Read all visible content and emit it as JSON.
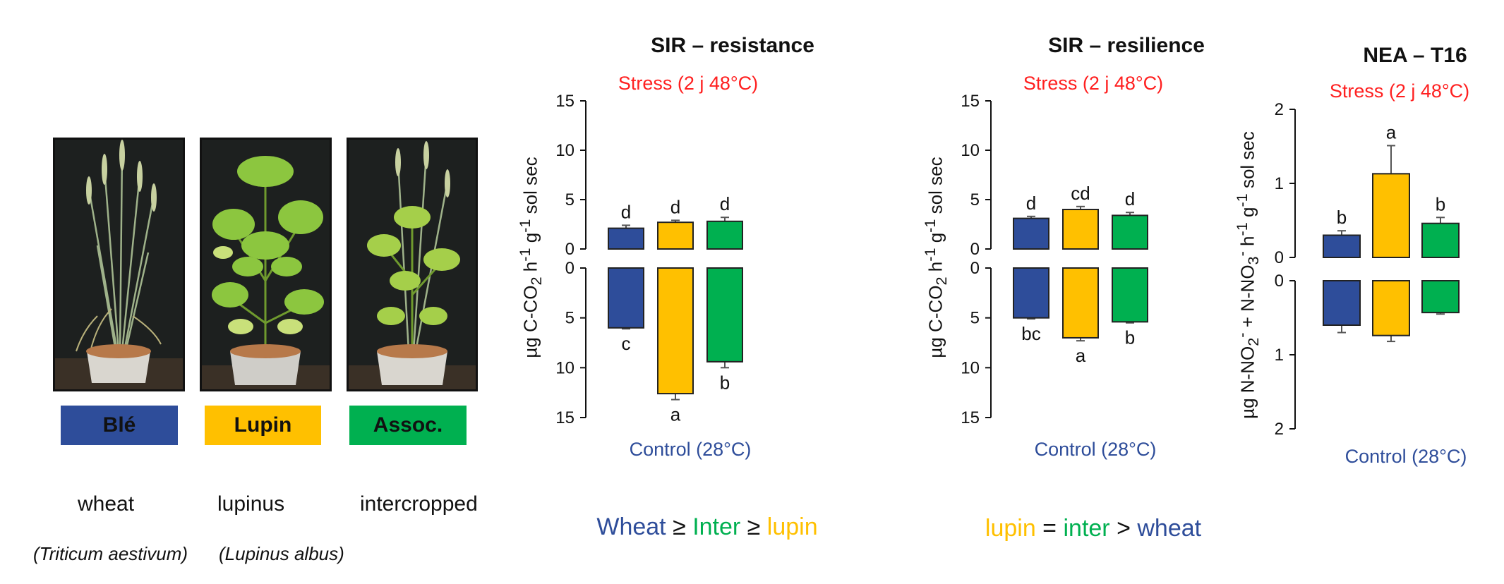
{
  "colors": {
    "wheat": "#2e4d9a",
    "lupin": "#ffc000",
    "inter": "#00b050",
    "stress": "#ff2020",
    "control": "#2e4d9a",
    "frame": "#111111"
  },
  "photos": [
    {
      "name": "photo-wheat",
      "tag": "wheat"
    },
    {
      "name": "photo-lupin",
      "tag": "lupin"
    },
    {
      "name": "photo-assoc",
      "tag": "inter"
    }
  ],
  "legend": {
    "wheat": "Blé",
    "lupin": "Lupin",
    "inter": "Assoc."
  },
  "captions": {
    "wheat": "wheat",
    "lupin": "lupinus",
    "inter": "intercropped"
  },
  "latin": {
    "wheat": "(Triticum aestivum)",
    "lupin": "(Lupinus albus)"
  },
  "panels": {
    "p1": {
      "title": "SIR – resistance",
      "stress": "Stress (2 j 48°C)",
      "control": "Control (28°C)"
    },
    "p2": {
      "title": "SIR – resilience",
      "stress": "Stress (2 j 48°C)",
      "control": "Control (28°C)"
    },
    "p3": {
      "title": "NEA – T16",
      "stress": "Stress (2 j 48°C)",
      "control": "Control (28°C)"
    }
  },
  "summary1": {
    "a": "Wheat",
    "op1": " ≥ ",
    "b": "Inter",
    "op2": " ≥ ",
    "c": "lupin"
  },
  "summary2": {
    "a": "lupin",
    "op1": " = ",
    "b": "inter",
    "op2": " > ",
    "c": "wheat"
  },
  "chart_data": [
    {
      "type": "bar",
      "title": "SIR – resistance",
      "ylabel": "µg C-CO2 h-1 g-1 sol sec",
      "categories": [
        "wheat",
        "lupin",
        "inter"
      ],
      "upper": {
        "label": "Stress (2 j 48°C)",
        "ylim": [
          0,
          15
        ],
        "ticks": [
          0,
          5,
          10,
          15
        ],
        "values": [
          2.1,
          2.7,
          2.8
        ],
        "errors": [
          0.3,
          0.2,
          0.4
        ],
        "letters": [
          "d",
          "d",
          "d"
        ]
      },
      "lower": {
        "label": "Control (28°C)",
        "ylim": [
          0,
          15
        ],
        "ticks": [
          0,
          5,
          10,
          15
        ],
        "values": [
          6.0,
          12.6,
          9.4
        ],
        "errors": [
          0.1,
          0.6,
          0.6
        ],
        "letters": [
          "c",
          "a",
          "b"
        ]
      }
    },
    {
      "type": "bar",
      "title": "SIR – resilience",
      "ylabel": "µg C-CO2 h-1 g-1 sol sec",
      "categories": [
        "wheat",
        "lupin",
        "inter"
      ],
      "upper": {
        "label": "Stress (2 j 48°C)",
        "ylim": [
          0,
          15
        ],
        "ticks": [
          0,
          5,
          10,
          15
        ],
        "values": [
          3.1,
          4.0,
          3.4
        ],
        "errors": [
          0.2,
          0.3,
          0.3
        ],
        "letters": [
          "d",
          "cd",
          "d"
        ]
      },
      "lower": {
        "label": "Control (28°C)",
        "ylim": [
          0,
          15
        ],
        "ticks": [
          0,
          5,
          10,
          15
        ],
        "values": [
          5.0,
          7.0,
          5.4
        ],
        "errors": [
          0.1,
          0.3,
          0.1
        ],
        "letters": [
          "bc",
          "a",
          "b"
        ]
      }
    },
    {
      "type": "bar",
      "title": "NEA – T16",
      "ylabel": "µg N-NO2- + N-NO3- h-1 g-1 sol sec",
      "categories": [
        "wheat",
        "lupin",
        "inter"
      ],
      "upper": {
        "label": "Stress (2 j 48°C)",
        "ylim": [
          0,
          2
        ],
        "ticks": [
          0,
          1,
          2
        ],
        "values": [
          0.3,
          1.13,
          0.46
        ],
        "errors": [
          0.06,
          0.38,
          0.08
        ],
        "letters": [
          "b",
          "a",
          "b"
        ]
      },
      "lower": {
        "label": "Control (28°C)",
        "ylim": [
          0,
          2
        ],
        "ticks": [
          0,
          1,
          2
        ],
        "values": [
          0.6,
          0.74,
          0.43
        ],
        "errors": [
          0.1,
          0.08,
          0.02
        ],
        "letters": [
          "",
          "",
          ""
        ]
      }
    }
  ]
}
